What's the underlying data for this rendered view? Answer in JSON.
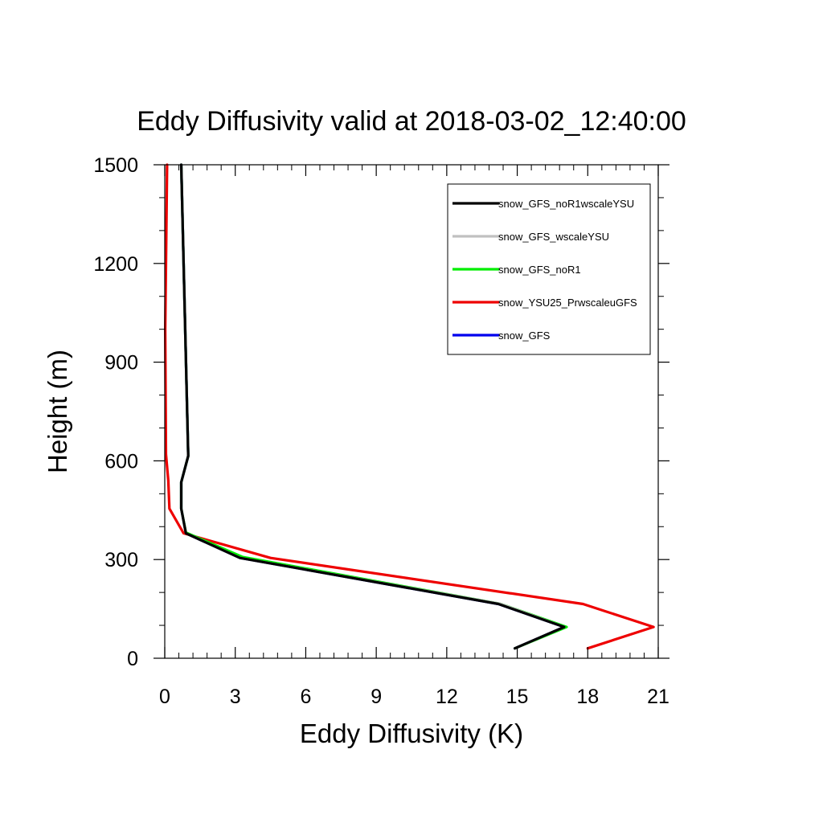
{
  "chart_data": {
    "type": "line",
    "title": "Eddy Diffusivity valid at 2018-03-02_12:40:00",
    "xlabel": "Eddy Diffusivity (K)",
    "ylabel": "Height (m)",
    "xlim": [
      0,
      21
    ],
    "ylim": [
      0,
      1500
    ],
    "xticks": [
      0,
      3,
      6,
      9,
      12,
      15,
      18,
      21
    ],
    "xtick_labels": [
      "0",
      "3",
      "6",
      "9",
      "12",
      "15",
      "18",
      "21"
    ],
    "yticks": [
      0,
      300,
      600,
      900,
      1200,
      1500
    ],
    "ytick_labels": [
      "0",
      "300",
      "600",
      "900",
      "1200",
      "1500"
    ],
    "grid": false,
    "legend_position": "top-right",
    "series": [
      {
        "name": "snow_GFS_noR1wscaleYSU",
        "color": "#000000",
        "x": [
          14.9,
          17.0,
          14.2,
          3.2,
          0.9,
          0.7,
          0.7,
          1.0,
          0.7
        ],
        "y": [
          30,
          95,
          165,
          305,
          380,
          455,
          535,
          615,
          1500
        ]
      },
      {
        "name": "snow_GFS_wscaleYSU",
        "color": "#c0c0c0",
        "x": [
          14.9,
          17.0,
          14.3,
          3.2,
          0.9,
          0.7,
          0.7,
          1.0,
          0.7
        ],
        "y": [
          30,
          95,
          165,
          305,
          380,
          455,
          535,
          615,
          1500
        ]
      },
      {
        "name": "snow_GFS_noR1",
        "color": "#00ee00",
        "x": [
          14.9,
          17.1,
          14.3,
          3.3,
          0.9,
          0.7,
          0.7,
          1.0,
          0.7
        ],
        "y": [
          30,
          95,
          165,
          308,
          382,
          455,
          535,
          615,
          1500
        ]
      },
      {
        "name": "snow_YSU25_PrwscaleuGFS",
        "color": "#ee0000",
        "x": [
          18.0,
          20.8,
          17.8,
          4.5,
          0.8,
          0.2,
          0.15,
          0.05,
          0.02,
          0.1
        ],
        "y": [
          30,
          95,
          165,
          305,
          380,
          455,
          540,
          620,
          1000,
          1500
        ]
      },
      {
        "name": "snow_GFS",
        "color": "#0000ee",
        "x": [
          14.9,
          17.0,
          14.2,
          3.2,
          0.9,
          0.7,
          0.7,
          1.0,
          0.7
        ],
        "y": [
          30,
          95,
          165,
          305,
          380,
          455,
          535,
          615,
          1500
        ]
      }
    ]
  }
}
